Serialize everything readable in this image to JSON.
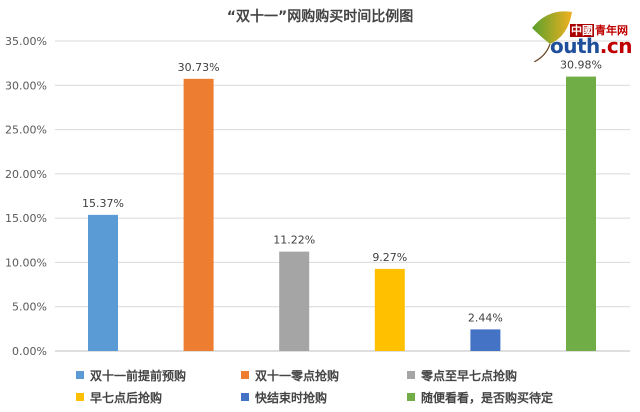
{
  "chart_data": {
    "type": "bar",
    "title": "“双十一”网购购买时间比例图",
    "categories": [
      "双十一前提前预购",
      "双十一零点抢购",
      "零点至早七点抢购",
      "早七点后抢购",
      "快结束时抢购",
      "随便看看，是否购买待定"
    ],
    "values": [
      15.37,
      30.73,
      11.22,
      9.27,
      2.44,
      30.98
    ],
    "data_labels": [
      "15.37%",
      "30.73%",
      "11.22%",
      "9.27%",
      "2.44%",
      "30.98%"
    ],
    "colors": [
      "#5b9bd5",
      "#ed7d31",
      "#a5a5a5",
      "#ffc000",
      "#4472c4",
      "#70ad47"
    ],
    "yticks": [
      "0.00%",
      "5.00%",
      "10.00%",
      "15.00%",
      "20.00%",
      "25.00%",
      "30.00%",
      "35.00%"
    ],
    "ylim": [
      0,
      35
    ],
    "grid": true,
    "legend_position": "bottom",
    "xlabel": "",
    "ylabel": ""
  },
  "logo": {
    "cn_badge": "中國",
    "cn_text": "青年网",
    "brand_y": "y",
    "brand_rest": "outh",
    "brand_tld": ".cn"
  }
}
